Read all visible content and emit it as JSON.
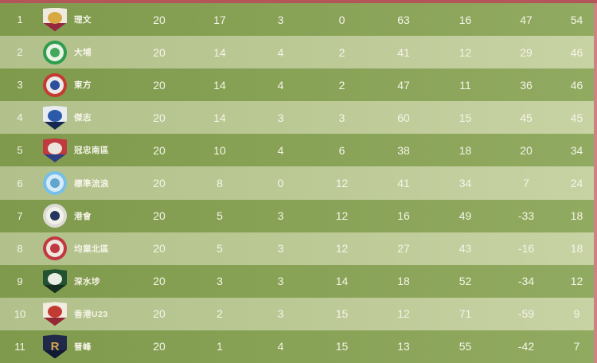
{
  "colors": {
    "top_bar": "#b25659",
    "right_strip": "#cb8386",
    "row_dark": "#87a155",
    "row_light": "#bac894",
    "text": "#f6f4e8"
  },
  "table": {
    "column_keys": [
      "played",
      "won",
      "drawn",
      "lost",
      "goals-for",
      "goals-against",
      "goal-difference",
      "points"
    ],
    "rows": [
      {
        "rank": "1",
        "team": "理文",
        "crest": {
          "name": "lee-man-crest-icon",
          "shape": "shield",
          "colors": [
            "#efe9df",
            "#d8a843",
            "#93283f"
          ],
          "glyph": "",
          "glyph_color": ""
        },
        "stats": [
          "20",
          "17",
          "3",
          "0",
          "63",
          "16",
          "47",
          "54"
        ]
      },
      {
        "rank": "2",
        "team": "大埔",
        "crest": {
          "name": "tai-po-crest-icon",
          "shape": "circle",
          "colors": [
            "#2e9d4f",
            "#eaf3e4",
            "#43a85c"
          ],
          "glyph": "",
          "glyph_color": ""
        },
        "stats": [
          "20",
          "14",
          "4",
          "2",
          "41",
          "12",
          "29",
          "46"
        ]
      },
      {
        "rank": "3",
        "team": "東方",
        "crest": {
          "name": "eastern-crest-icon",
          "shape": "circle",
          "colors": [
            "#c53b33",
            "#eceae6",
            "#2b4f9e"
          ],
          "glyph": "",
          "glyph_color": ""
        },
        "stats": [
          "20",
          "14",
          "4",
          "2",
          "47",
          "11",
          "36",
          "46"
        ]
      },
      {
        "rank": "4",
        "team": "傑志",
        "crest": {
          "name": "kitchee-crest-icon",
          "shape": "shield",
          "colors": [
            "#e9edf2",
            "#2b5aa8",
            "#14294d"
          ],
          "glyph": "",
          "glyph_color": ""
        },
        "stats": [
          "20",
          "14",
          "3",
          "3",
          "60",
          "15",
          "45",
          "45"
        ]
      },
      {
        "rank": "5",
        "team": "冠忠南區",
        "crest": {
          "name": "southern-district-crest-icon",
          "shape": "shield",
          "colors": [
            "#c2393f",
            "#ece5dd",
            "#2b3f85"
          ],
          "glyph": "",
          "glyph_color": ""
        },
        "stats": [
          "20",
          "10",
          "4",
          "6",
          "38",
          "18",
          "20",
          "34"
        ]
      },
      {
        "rank": "6",
        "team": "標準流浪",
        "crest": {
          "name": "rangers-crest-icon",
          "shape": "circle",
          "colors": [
            "#76c0e8",
            "#d6ebf7",
            "#5fa5cd"
          ],
          "glyph": "",
          "glyph_color": ""
        },
        "stats": [
          "20",
          "8",
          "0",
          "12",
          "41",
          "34",
          "7",
          "24"
        ]
      },
      {
        "rank": "7",
        "team": "港會",
        "crest": {
          "name": "hkfc-crest-icon",
          "shape": "circle",
          "colors": [
            "#dcdcd4",
            "#f2f1e9",
            "#26355f"
          ],
          "glyph": "",
          "glyph_color": ""
        },
        "stats": [
          "20",
          "5",
          "3",
          "12",
          "16",
          "49",
          "-33",
          "18"
        ]
      },
      {
        "rank": "8",
        "team": "均業北區",
        "crest": {
          "name": "north-district-crest-icon",
          "shape": "circle",
          "colors": [
            "#c03840",
            "#efe6de",
            "#c03840"
          ],
          "glyph": "",
          "glyph_color": ""
        },
        "stats": [
          "20",
          "5",
          "3",
          "12",
          "27",
          "43",
          "-16",
          "18"
        ]
      },
      {
        "rank": "9",
        "team": "深水埗",
        "crest": {
          "name": "sham-shui-po-crest-icon",
          "shape": "shield",
          "colors": [
            "#235233",
            "#e9efe4",
            "#152f1e"
          ],
          "glyph": "",
          "glyph_color": ""
        },
        "stats": [
          "20",
          "3",
          "3",
          "14",
          "18",
          "52",
          "-34",
          "12"
        ]
      },
      {
        "rank": "10",
        "team": "香港U23",
        "crest": {
          "name": "hong-kong-u23-crest-icon",
          "shape": "shield",
          "colors": [
            "#f2ebe0",
            "#c23b32",
            "#932732"
          ],
          "glyph": "",
          "glyph_color": ""
        },
        "stats": [
          "20",
          "2",
          "3",
          "15",
          "12",
          "71",
          "-59",
          "9"
        ]
      },
      {
        "rank": "11",
        "team": "晉峰",
        "crest": {
          "name": "bc-rangers-crest-icon",
          "shape": "shield",
          "colors": [
            "#20294a",
            "",
            "#101a33"
          ],
          "glyph": "R",
          "glyph_color": "#d2a94d"
        },
        "stats": [
          "20",
          "1",
          "4",
          "15",
          "13",
          "55",
          "-42",
          "7"
        ]
      }
    ]
  }
}
